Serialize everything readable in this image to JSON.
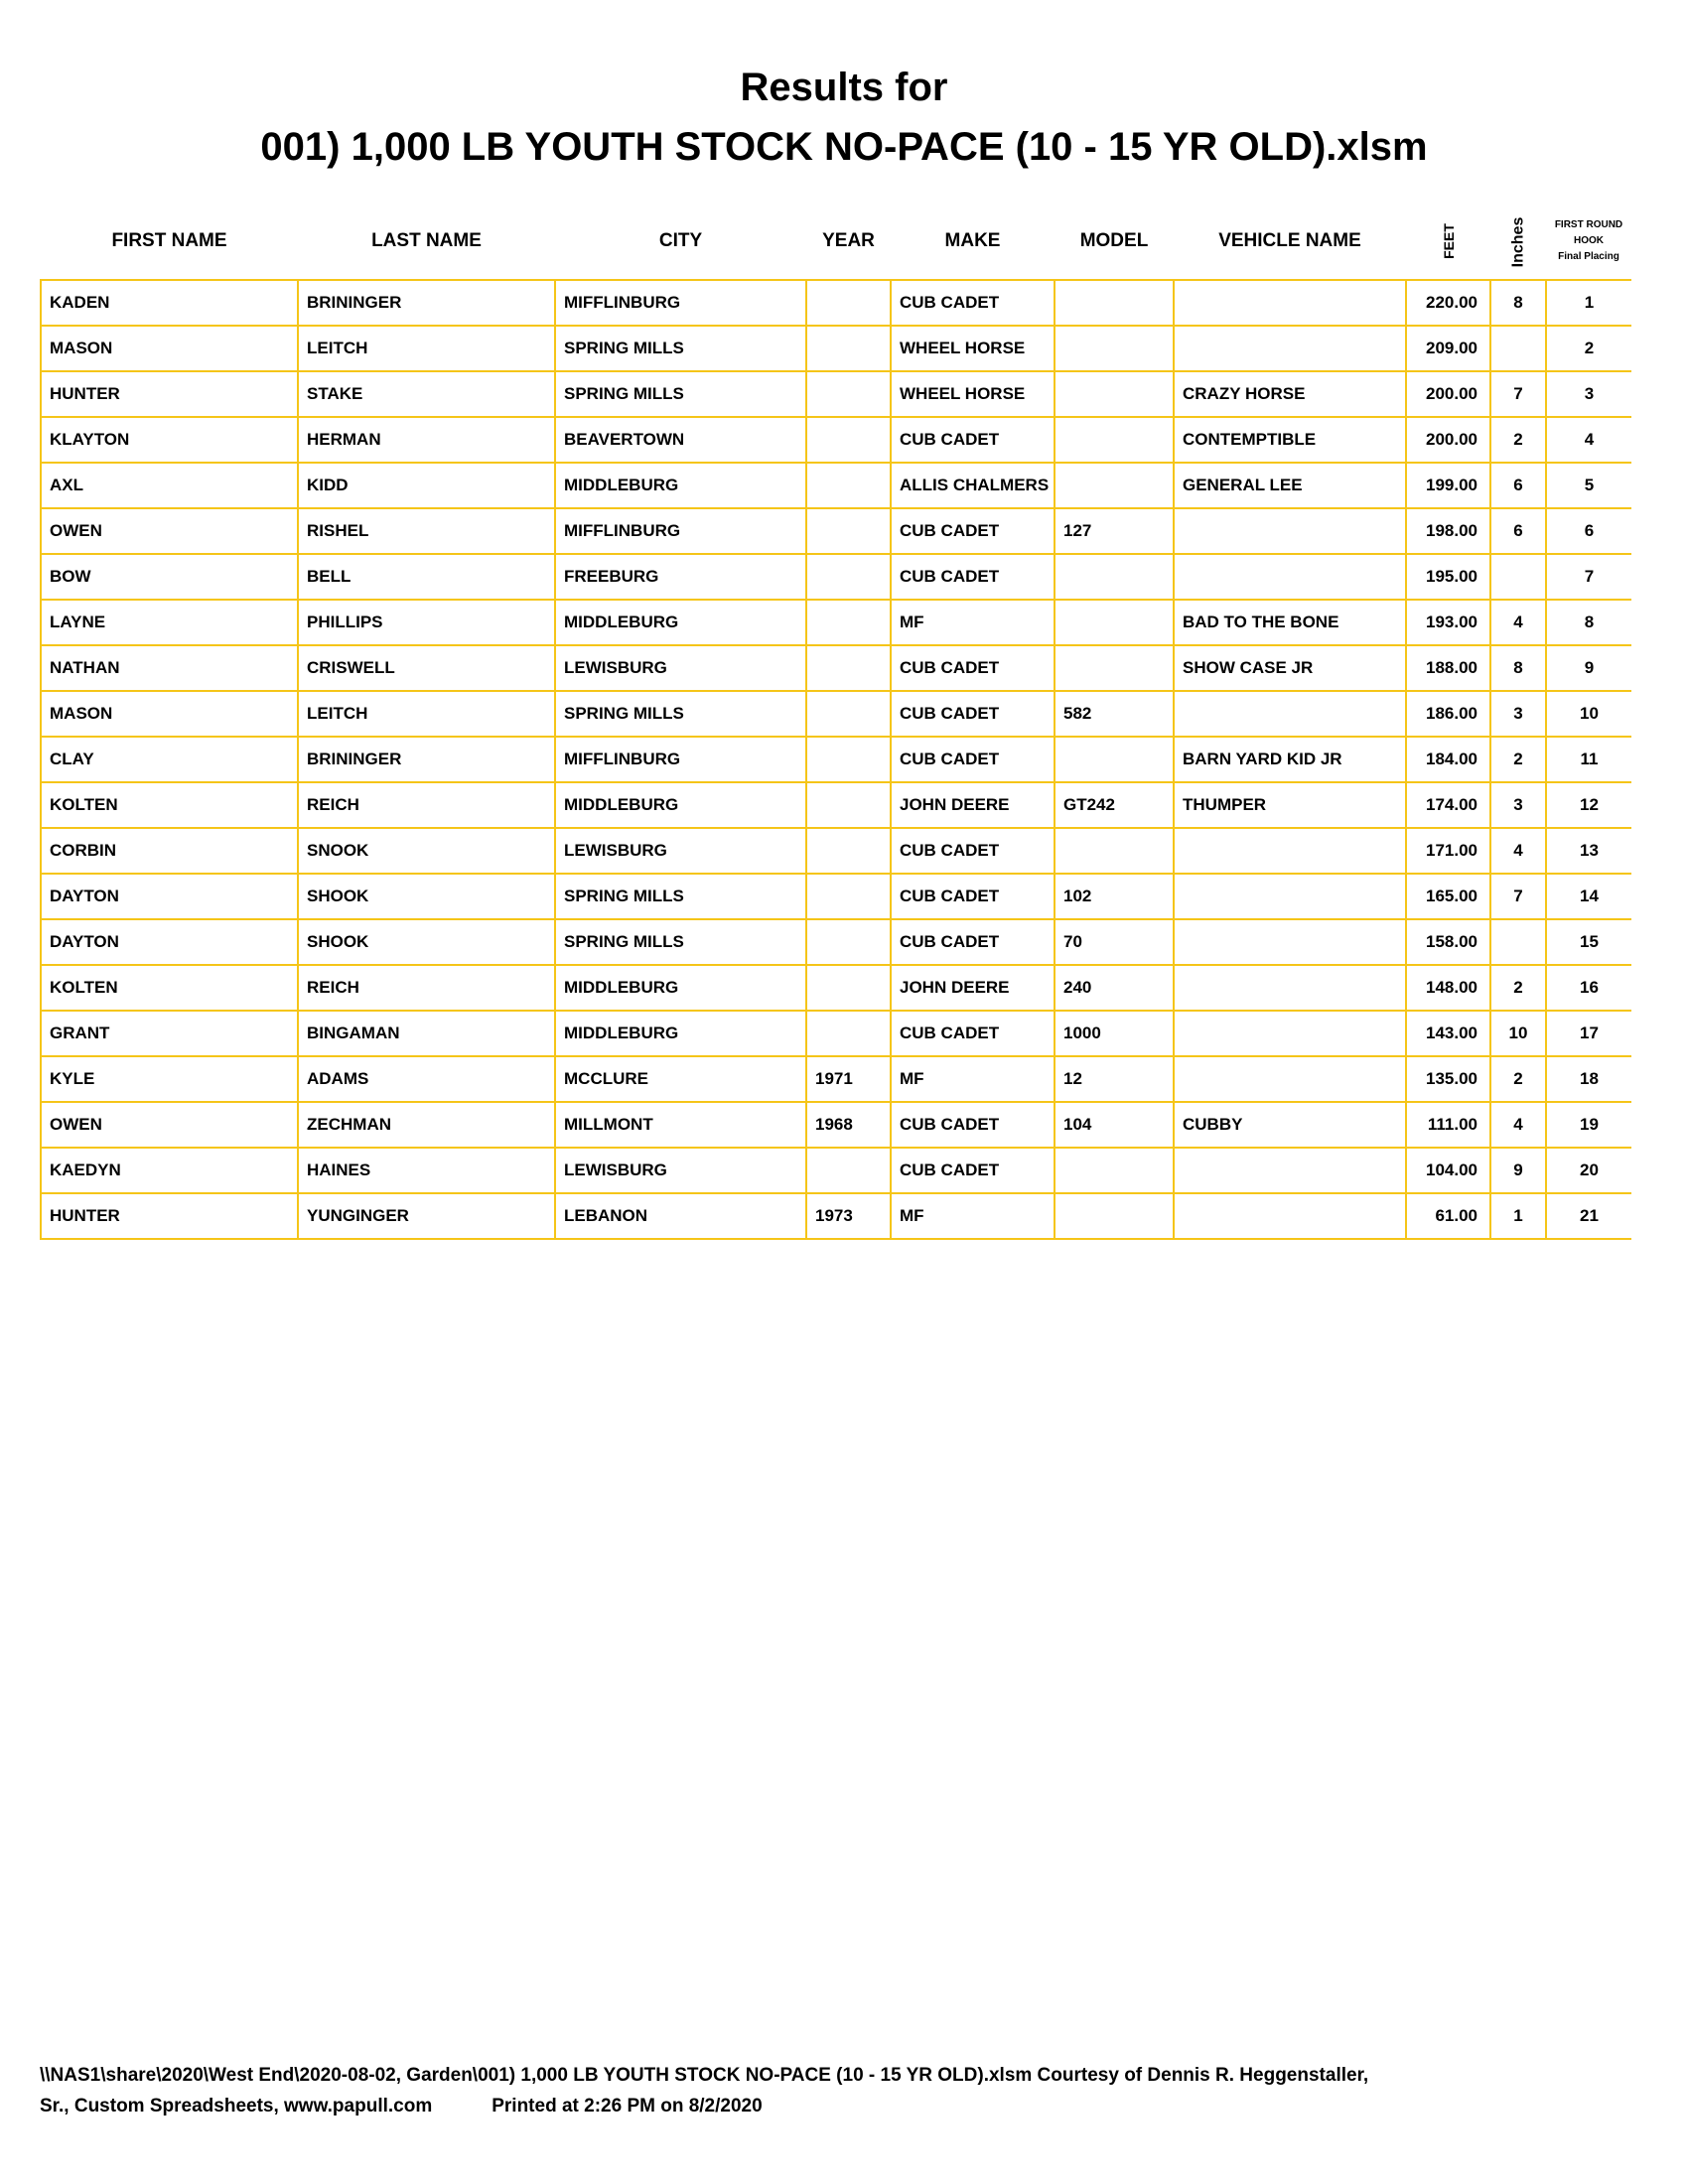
{
  "title_line1": "Results for",
  "title_line2": "001) 1,000 LB YOUTH STOCK NO-PACE (10 - 15 YR OLD).xlsm",
  "border_color": "#F5C518",
  "columns": [
    "FIRST NAME",
    "LAST NAME",
    "CITY",
    "YEAR",
    "MAKE",
    "MODEL",
    "VEHICLE NAME",
    "FEET",
    "Inches"
  ],
  "last_column_lines": [
    "FIRST ROUND",
    "HOOK",
    "Final Placing"
  ],
  "rows": [
    [
      "KADEN",
      "BRININGER",
      "MIFFLINBURG",
      "",
      "CUB CADET",
      "",
      "",
      "220.00",
      "8",
      "1"
    ],
    [
      "MASON",
      "LEITCH",
      "SPRING MILLS",
      "",
      "WHEEL HORSE",
      "",
      "",
      "209.00",
      "",
      "2"
    ],
    [
      "HUNTER",
      "STAKE",
      "SPRING MILLS",
      "",
      "WHEEL HORSE",
      "",
      "CRAZY HORSE",
      "200.00",
      "7",
      "3"
    ],
    [
      "KLAYTON",
      "HERMAN",
      "BEAVERTOWN",
      "",
      "CUB CADET",
      "",
      "CONTEMPTIBLE",
      "200.00",
      "2",
      "4"
    ],
    [
      "AXL",
      "KIDD",
      "MIDDLEBURG",
      "",
      "ALLIS CHALMERS",
      "",
      "GENERAL LEE",
      "199.00",
      "6",
      "5"
    ],
    [
      "OWEN",
      "RISHEL",
      "MIFFLINBURG",
      "",
      "CUB CADET",
      "127",
      "",
      "198.00",
      "6",
      "6"
    ],
    [
      "BOW",
      "BELL",
      "FREEBURG",
      "",
      "CUB CADET",
      "",
      "",
      "195.00",
      "",
      "7"
    ],
    [
      "LAYNE",
      "PHILLIPS",
      "MIDDLEBURG",
      "",
      "MF",
      "",
      "BAD TO THE BONE",
      "193.00",
      "4",
      "8"
    ],
    [
      "NATHAN",
      "CRISWELL",
      "LEWISBURG",
      "",
      "CUB CADET",
      "",
      "SHOW CASE JR",
      "188.00",
      "8",
      "9"
    ],
    [
      "MASON",
      "LEITCH",
      "SPRING MILLS",
      "",
      "CUB CADET",
      "582",
      "",
      "186.00",
      "3",
      "10"
    ],
    [
      "CLAY",
      "BRININGER",
      "MIFFLINBURG",
      "",
      "CUB CADET",
      "",
      "BARN YARD KID JR",
      "184.00",
      "2",
      "11"
    ],
    [
      "KOLTEN",
      "REICH",
      "MIDDLEBURG",
      "",
      "JOHN DEERE",
      "GT242",
      "THUMPER",
      "174.00",
      "3",
      "12"
    ],
    [
      "CORBIN",
      "SNOOK",
      "LEWISBURG",
      "",
      "CUB CADET",
      "",
      "",
      "171.00",
      "4",
      "13"
    ],
    [
      "DAYTON",
      "SHOOK",
      "SPRING MILLS",
      "",
      "CUB CADET",
      "102",
      "",
      "165.00",
      "7",
      "14"
    ],
    [
      "DAYTON",
      "SHOOK",
      "SPRING MILLS",
      "",
      "CUB CADET",
      "70",
      "",
      "158.00",
      "",
      "15"
    ],
    [
      "KOLTEN",
      "REICH",
      "MIDDLEBURG",
      "",
      "JOHN DEERE",
      "240",
      "",
      "148.00",
      "2",
      "16"
    ],
    [
      "GRANT",
      "BINGAMAN",
      "MIDDLEBURG",
      "",
      "CUB CADET",
      "1000",
      "",
      "143.00",
      "10",
      "17"
    ],
    [
      "KYLE",
      "ADAMS",
      "MCCLURE",
      "1971",
      "MF",
      "12",
      "",
      "135.00",
      "2",
      "18"
    ],
    [
      "OWEN",
      "ZECHMAN",
      "MILLMONT",
      "1968",
      "CUB CADET",
      "104",
      "CUBBY",
      "111.00",
      "4",
      "19"
    ],
    [
      "KAEDYN",
      "HAINES",
      "LEWISBURG",
      "",
      "CUB CADET",
      "",
      "",
      "104.00",
      "9",
      "20"
    ],
    [
      "HUNTER",
      "YUNGINGER",
      "LEBANON",
      "1973",
      "MF",
      "",
      "",
      "61.00",
      "1",
      "21"
    ]
  ],
  "footer": {
    "line1": "\\\\NAS1\\share\\2020\\West End\\2020-08-02, Garden\\001) 1,000 LB YOUTH STOCK NO-PACE (10 - 15 YR OLD).xlsm  Courtesy of Dennis R. Heggenstaller,",
    "line2": "Sr., Custom Spreadsheets, www.papull.com",
    "printed": "Printed at 2:26 PM on 8/2/2020"
  }
}
